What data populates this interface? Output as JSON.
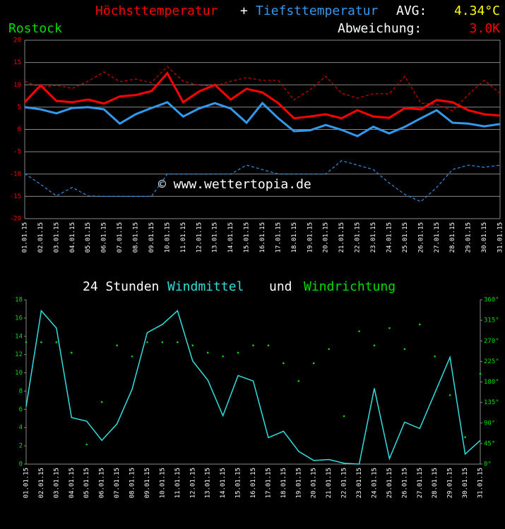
{
  "chart_data": [
    {
      "type": "line",
      "annotations": {
        "plus": "+",
        "avg_label": "AVG:",
        "avg": "4.34°C",
        "location": "Rostock",
        "deviation_label": "Abweichung:",
        "deviation": "3.0K",
        "watermark": "© www.wettertopia.de"
      },
      "categories": [
        "01.01.15",
        "02.01.15",
        "03.01.15",
        "04.01.15",
        "05.01.15",
        "06.01.15",
        "07.01.15",
        "08.01.15",
        "09.01.15",
        "10.01.15",
        "11.01.15",
        "12.01.15",
        "13.01.15",
        "14.01.15",
        "15.01.15",
        "16.01.15",
        "17.01.15",
        "18.01.15",
        "19.01.15",
        "20.01.15",
        "21.01.15",
        "22.01.15",
        "23.01.15",
        "24.01.15",
        "25.01.15",
        "26.01.15",
        "27.01.15",
        "28.01.15",
        "29.01.15",
        "30.01.15",
        "31.01.15"
      ],
      "series": [
        {
          "color": "#d10000",
          "dashed": true,
          "values": [
            10.8,
            9.4,
            9.9,
            9.2,
            10.8,
            12.9,
            10.7,
            11.3,
            10.5,
            14.1,
            10.8,
            9.9,
            9.7,
            10.8,
            11.6,
            11.0,
            11.0,
            6.6,
            8.9,
            11.9,
            8.1,
            7.0,
            8.0,
            8.0,
            11.9,
            5.9,
            5.6,
            4.2,
            7.8,
            11.0,
            8.1
          ]
        },
        {
          "color": "#2f8fe0",
          "dashed": true,
          "values": [
            -9.9,
            -12.3,
            -14.9,
            -13.0,
            -14.9,
            -15,
            -15,
            -15,
            -15,
            -10,
            -10,
            -10,
            -10,
            -10,
            -8,
            -9,
            -10,
            -10,
            -10,
            -10,
            -7,
            -8,
            -9,
            -12,
            -14.6,
            -16.2,
            -13,
            -9,
            -8,
            -8.5,
            -8
          ]
        },
        {
          "name": "Höchsttemperatur",
          "color": "#ff0000",
          "dashed": false,
          "values": [
            6.1,
            9.9,
            6.4,
            6.1,
            6.7,
            5.8,
            7.4,
            7.7,
            8.6,
            12.6,
            6.1,
            8.5,
            10.0,
            6.7,
            9.1,
            8.3,
            5.9,
            2.5,
            2.9,
            3.4,
            2.5,
            4.3,
            2.9,
            2.6,
            4.8,
            4.5,
            6.6,
            6.1,
            4.3,
            3.4,
            3.1
          ]
        },
        {
          "name": "Tiefsttemperatur",
          "color": "#3399ee",
          "dashed": false,
          "values": [
            5.0,
            4.5,
            3.6,
            4.8,
            5.0,
            4.5,
            1.3,
            3.4,
            4.8,
            6.1,
            2.9,
            4.7,
            5.9,
            4.7,
            1.5,
            5.9,
            2.5,
            -0.4,
            -0.2,
            1.0,
            -0.1,
            -1.5,
            0.6,
            -0.9,
            0.6,
            2.5,
            4.3,
            1.5,
            1.3,
            0.7,
            1.2
          ]
        }
      ],
      "ylim": [
        -20,
        20
      ],
      "yticks": [
        -20,
        -15,
        -10,
        -5,
        0,
        5,
        10,
        15,
        20
      ],
      "grid": true
    },
    {
      "type": "line",
      "title_parts": [
        "24 Stunden",
        "und"
      ],
      "categories": [
        "01.01.15",
        "02.01.15",
        "03.01.15",
        "04.01.15",
        "05.01.15",
        "06.01.15",
        "07.01.15",
        "08.01.15",
        "09.01.15",
        "10.01.15",
        "11.01.15",
        "12.01.15",
        "13.01.15",
        "14.01.15",
        "15.01.15",
        "16.01.15",
        "17.01.15",
        "18.01.15",
        "19.01.15",
        "20.01.15",
        "21.01.15",
        "22.01.15",
        "23.01.15",
        "24.01.15",
        "25.01.15",
        "26.01.15",
        "27.01.15",
        "28.01.15",
        "29.01.15",
        "30.01.15",
        "31.01.15"
      ],
      "series": [
        {
          "name": "Windmittel",
          "color": "#33dddd",
          "style": "line",
          "values": [
            6.3,
            16.8,
            14.9,
            5.1,
            4.7,
            2.6,
            4.4,
            8.2,
            14.4,
            15.3,
            16.8,
            11.3,
            9.2,
            5.3,
            9.7,
            9.1,
            2.9,
            3.6,
            1.4,
            0.4,
            0.5,
            0.1,
            0.0,
            8.3,
            0.6,
            4.6,
            3.9,
            7.8,
            11.7,
            1.1,
            2.6
          ]
        },
        {
          "name": "Windrichtung",
          "color": "#00dd00",
          "style": "dots",
          "axis": "y2",
          "values": [
            267,
            267,
            267,
            244,
            43,
            136,
            260,
            236,
            267,
            267,
            267,
            260,
            244,
            236,
            244,
            260,
            260,
            221,
            182,
            221,
            252,
            105,
            291,
            260,
            298,
            252,
            306,
            236,
            151,
            59,
            198
          ]
        }
      ],
      "ylim": [
        0,
        18
      ],
      "yticks": [
        0,
        2,
        4,
        6,
        8,
        10,
        12,
        14,
        16,
        18
      ],
      "y2lim": [
        0,
        360
      ],
      "y2ticks": [
        {
          "value": 0,
          "label": "0°"
        },
        {
          "value": 45,
          "label": "45°"
        },
        {
          "value": 90,
          "label": "90°"
        },
        {
          "value": 135,
          "label": "135°"
        },
        {
          "value": 180,
          "label": "180°"
        },
        {
          "value": 225,
          "label": "225°"
        },
        {
          "value": 270,
          "label": "270°"
        },
        {
          "value": 315,
          "label": "315°"
        },
        {
          "value": 360,
          "label": "360°"
        }
      ],
      "grid": false
    }
  ]
}
